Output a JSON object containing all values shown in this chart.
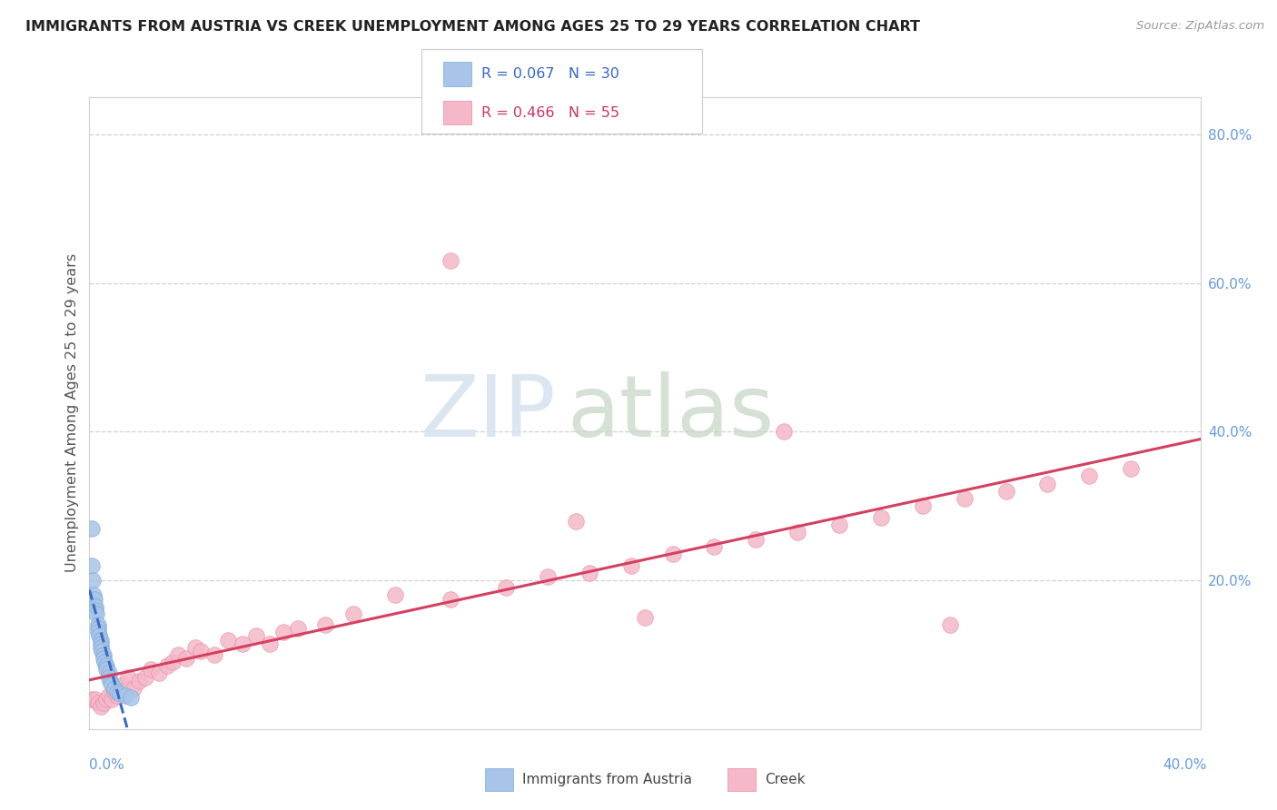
{
  "title": "IMMIGRANTS FROM AUSTRIA VS CREEK UNEMPLOYMENT AMONG AGES 25 TO 29 YEARS CORRELATION CHART",
  "source": "Source: ZipAtlas.com",
  "ylabel": "Unemployment Among Ages 25 to 29 years",
  "watermark_zip": "ZIP",
  "watermark_atlas": "atlas",
  "xmin": 0.0,
  "xmax": 0.4,
  "ymin": 0.0,
  "ymax": 0.85,
  "austria_color": "#a8c4e8",
  "austria_edge_color": "#7aaad4",
  "creek_color": "#f4b8c8",
  "creek_edge_color": "#e88aa8",
  "austria_line_color": "#3a6bc4",
  "creek_line_color": "#d44060",
  "grid_color": "#d0d0d0",
  "background_color": "#ffffff",
  "right_tick_color": "#6699dd",
  "austria_R": "0.067",
  "austria_N": "30",
  "creek_R": "0.466",
  "creek_N": "55",
  "austria_x": [
    0.0008,
    0.001,
    0.0012,
    0.0015,
    0.0018,
    0.002,
    0.0022,
    0.0025,
    0.003,
    0.003,
    0.0032,
    0.0035,
    0.004,
    0.004,
    0.0042,
    0.0045,
    0.005,
    0.005,
    0.0055,
    0.006,
    0.006,
    0.007,
    0.007,
    0.0075,
    0.008,
    0.009,
    0.01,
    0.011,
    0.013,
    0.015
  ],
  "austria_y": [
    0.27,
    0.22,
    0.2,
    0.18,
    0.175,
    0.165,
    0.16,
    0.155,
    0.14,
    0.135,
    0.13,
    0.125,
    0.12,
    0.115,
    0.11,
    0.105,
    0.1,
    0.095,
    0.09,
    0.085,
    0.08,
    0.075,
    0.07,
    0.065,
    0.06,
    0.055,
    0.05,
    0.048,
    0.045,
    0.042
  ],
  "creek_x": [
    0.001,
    0.002,
    0.003,
    0.004,
    0.005,
    0.006,
    0.007,
    0.008,
    0.009,
    0.01,
    0.012,
    0.014,
    0.016,
    0.018,
    0.02,
    0.022,
    0.025,
    0.028,
    0.03,
    0.032,
    0.035,
    0.038,
    0.04,
    0.045,
    0.05,
    0.055,
    0.06,
    0.065,
    0.07,
    0.075,
    0.085,
    0.095,
    0.11,
    0.13,
    0.15,
    0.165,
    0.18,
    0.195,
    0.21,
    0.225,
    0.24,
    0.255,
    0.27,
    0.285,
    0.3,
    0.315,
    0.33,
    0.345,
    0.36,
    0.375,
    0.13,
    0.25,
    0.2,
    0.31,
    0.175
  ],
  "creek_y": [
    0.04,
    0.04,
    0.035,
    0.03,
    0.035,
    0.04,
    0.045,
    0.04,
    0.05,
    0.045,
    0.06,
    0.07,
    0.055,
    0.065,
    0.07,
    0.08,
    0.075,
    0.085,
    0.09,
    0.1,
    0.095,
    0.11,
    0.105,
    0.1,
    0.12,
    0.115,
    0.125,
    0.115,
    0.13,
    0.135,
    0.14,
    0.155,
    0.18,
    0.175,
    0.19,
    0.205,
    0.21,
    0.22,
    0.235,
    0.245,
    0.255,
    0.265,
    0.275,
    0.285,
    0.3,
    0.31,
    0.32,
    0.33,
    0.34,
    0.35,
    0.63,
    0.4,
    0.15,
    0.14,
    0.28
  ]
}
